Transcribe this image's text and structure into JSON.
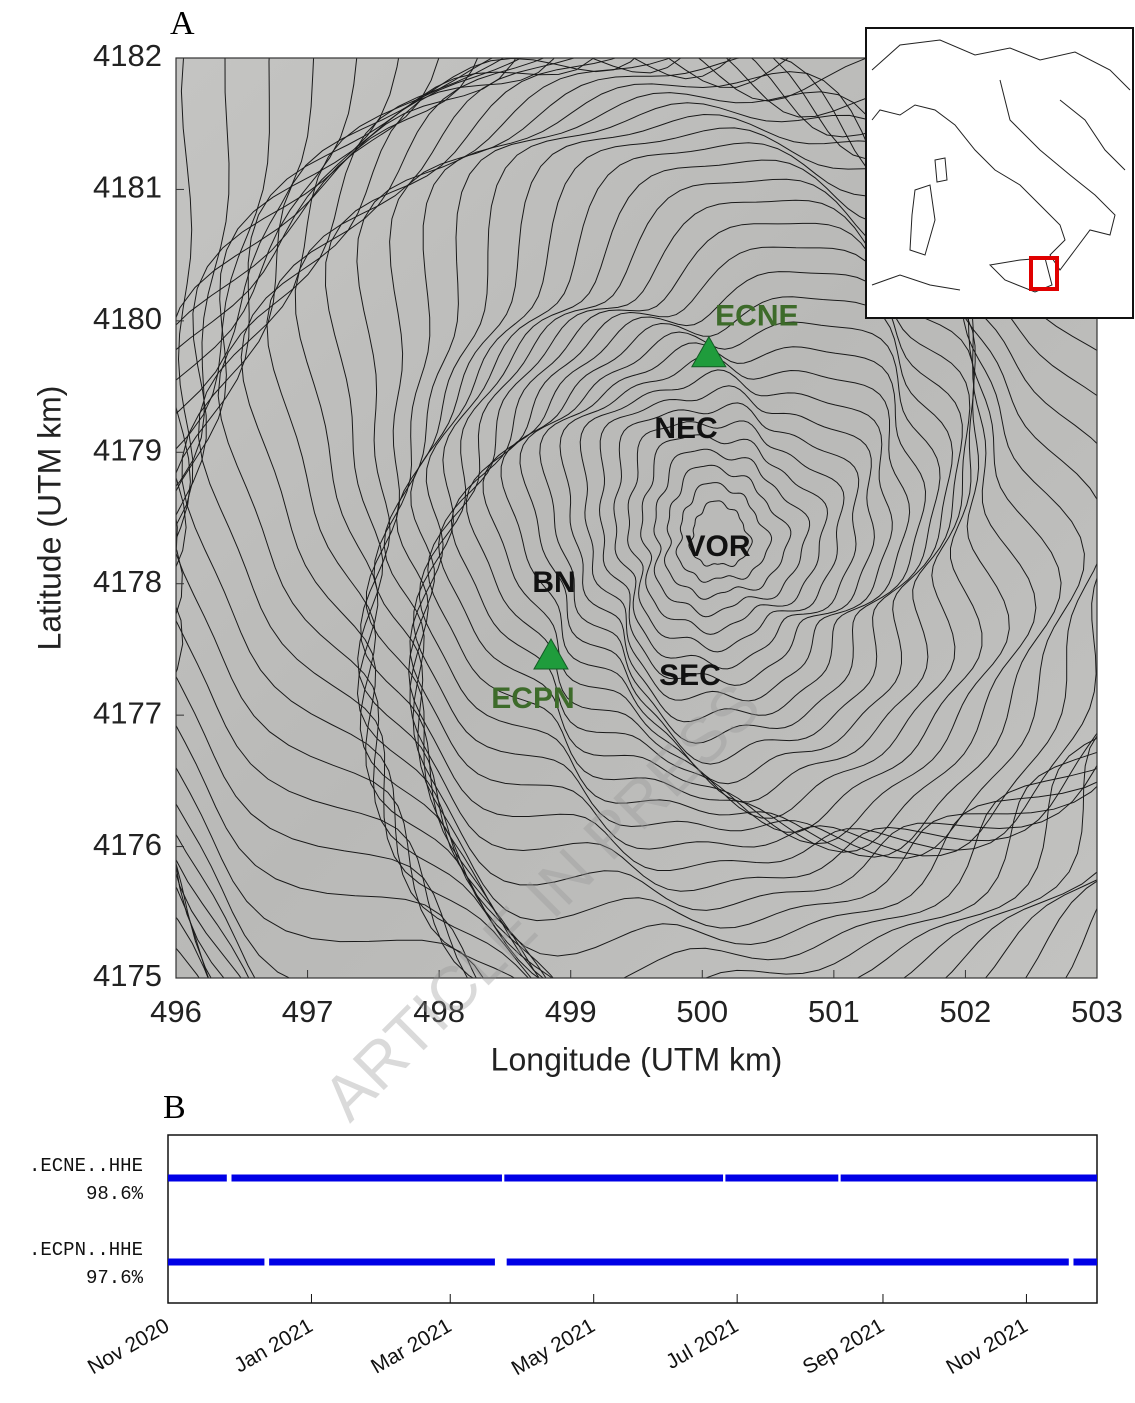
{
  "watermark": "ARTICLE IN PRESS",
  "chart_data": [
    {
      "type": "scatter",
      "panel": "A",
      "xlabel": "Longitude (UTM km)",
      "ylabel": "Latitude (UTM km)",
      "xlim": [
        496,
        503
      ],
      "ylim": [
        4175,
        4182
      ],
      "xticks": [
        496,
        497,
        498,
        499,
        500,
        501,
        502,
        503
      ],
      "yticks": [
        4175,
        4176,
        4177,
        4178,
        4179,
        4180,
        4181,
        4182
      ],
      "label_color": "#3d6b2a",
      "series": [
        {
          "name": "ECNE",
          "color": "#1f9c3c",
          "x": [
            500.05
          ],
          "y": [
            4179.75
          ]
        },
        {
          "name": "ECPN",
          "color": "#1f9c3c",
          "x": [
            498.85
          ],
          "y": [
            4177.45
          ]
        }
      ],
      "annotations": [
        "NEC",
        "VOR",
        "BN",
        "SEC"
      ]
    },
    {
      "type": "timeline",
      "panel": "B",
      "categories": [
        ".ECNE..HHE",
        ".ECPN..HHE"
      ],
      "values": [
        98.6,
        97.6
      ],
      "value_labels": [
        "98.6%",
        "97.6%"
      ],
      "color": "#0000e6",
      "segments": [
        [
          [
            "2020-11-01",
            "2020-11-26"
          ],
          [
            "2020-11-28",
            "2021-03-23"
          ],
          [
            "2021-03-24",
            "2021-06-25"
          ],
          [
            "2021-06-26",
            "2021-08-13"
          ],
          [
            "2021-08-14",
            "2021-12-01"
          ]
        ],
        [
          [
            "2020-11-01",
            "2020-12-12"
          ],
          [
            "2020-12-14",
            "2021-03-20"
          ],
          [
            "2021-03-25",
            "2021-11-19"
          ],
          [
            "2021-11-21",
            "2021-12-01"
          ]
        ]
      ],
      "xlim": [
        "2020-11-01",
        "2021-12-01"
      ],
      "xticks": [
        {
          "value": "2020-11-01",
          "label": "Nov 2020"
        },
        {
          "value": "2021-01-01",
          "label": "Jan 2021"
        },
        {
          "value": "2021-03-01",
          "label": "Mar 2021"
        },
        {
          "value": "2021-05-01",
          "label": "May 2021"
        },
        {
          "value": "2021-07-01",
          "label": "Jul 2021"
        },
        {
          "value": "2021-09-01",
          "label": "Sep 2021"
        },
        {
          "value": "2021-11-01",
          "label": "Nov 2021"
        }
      ]
    }
  ]
}
